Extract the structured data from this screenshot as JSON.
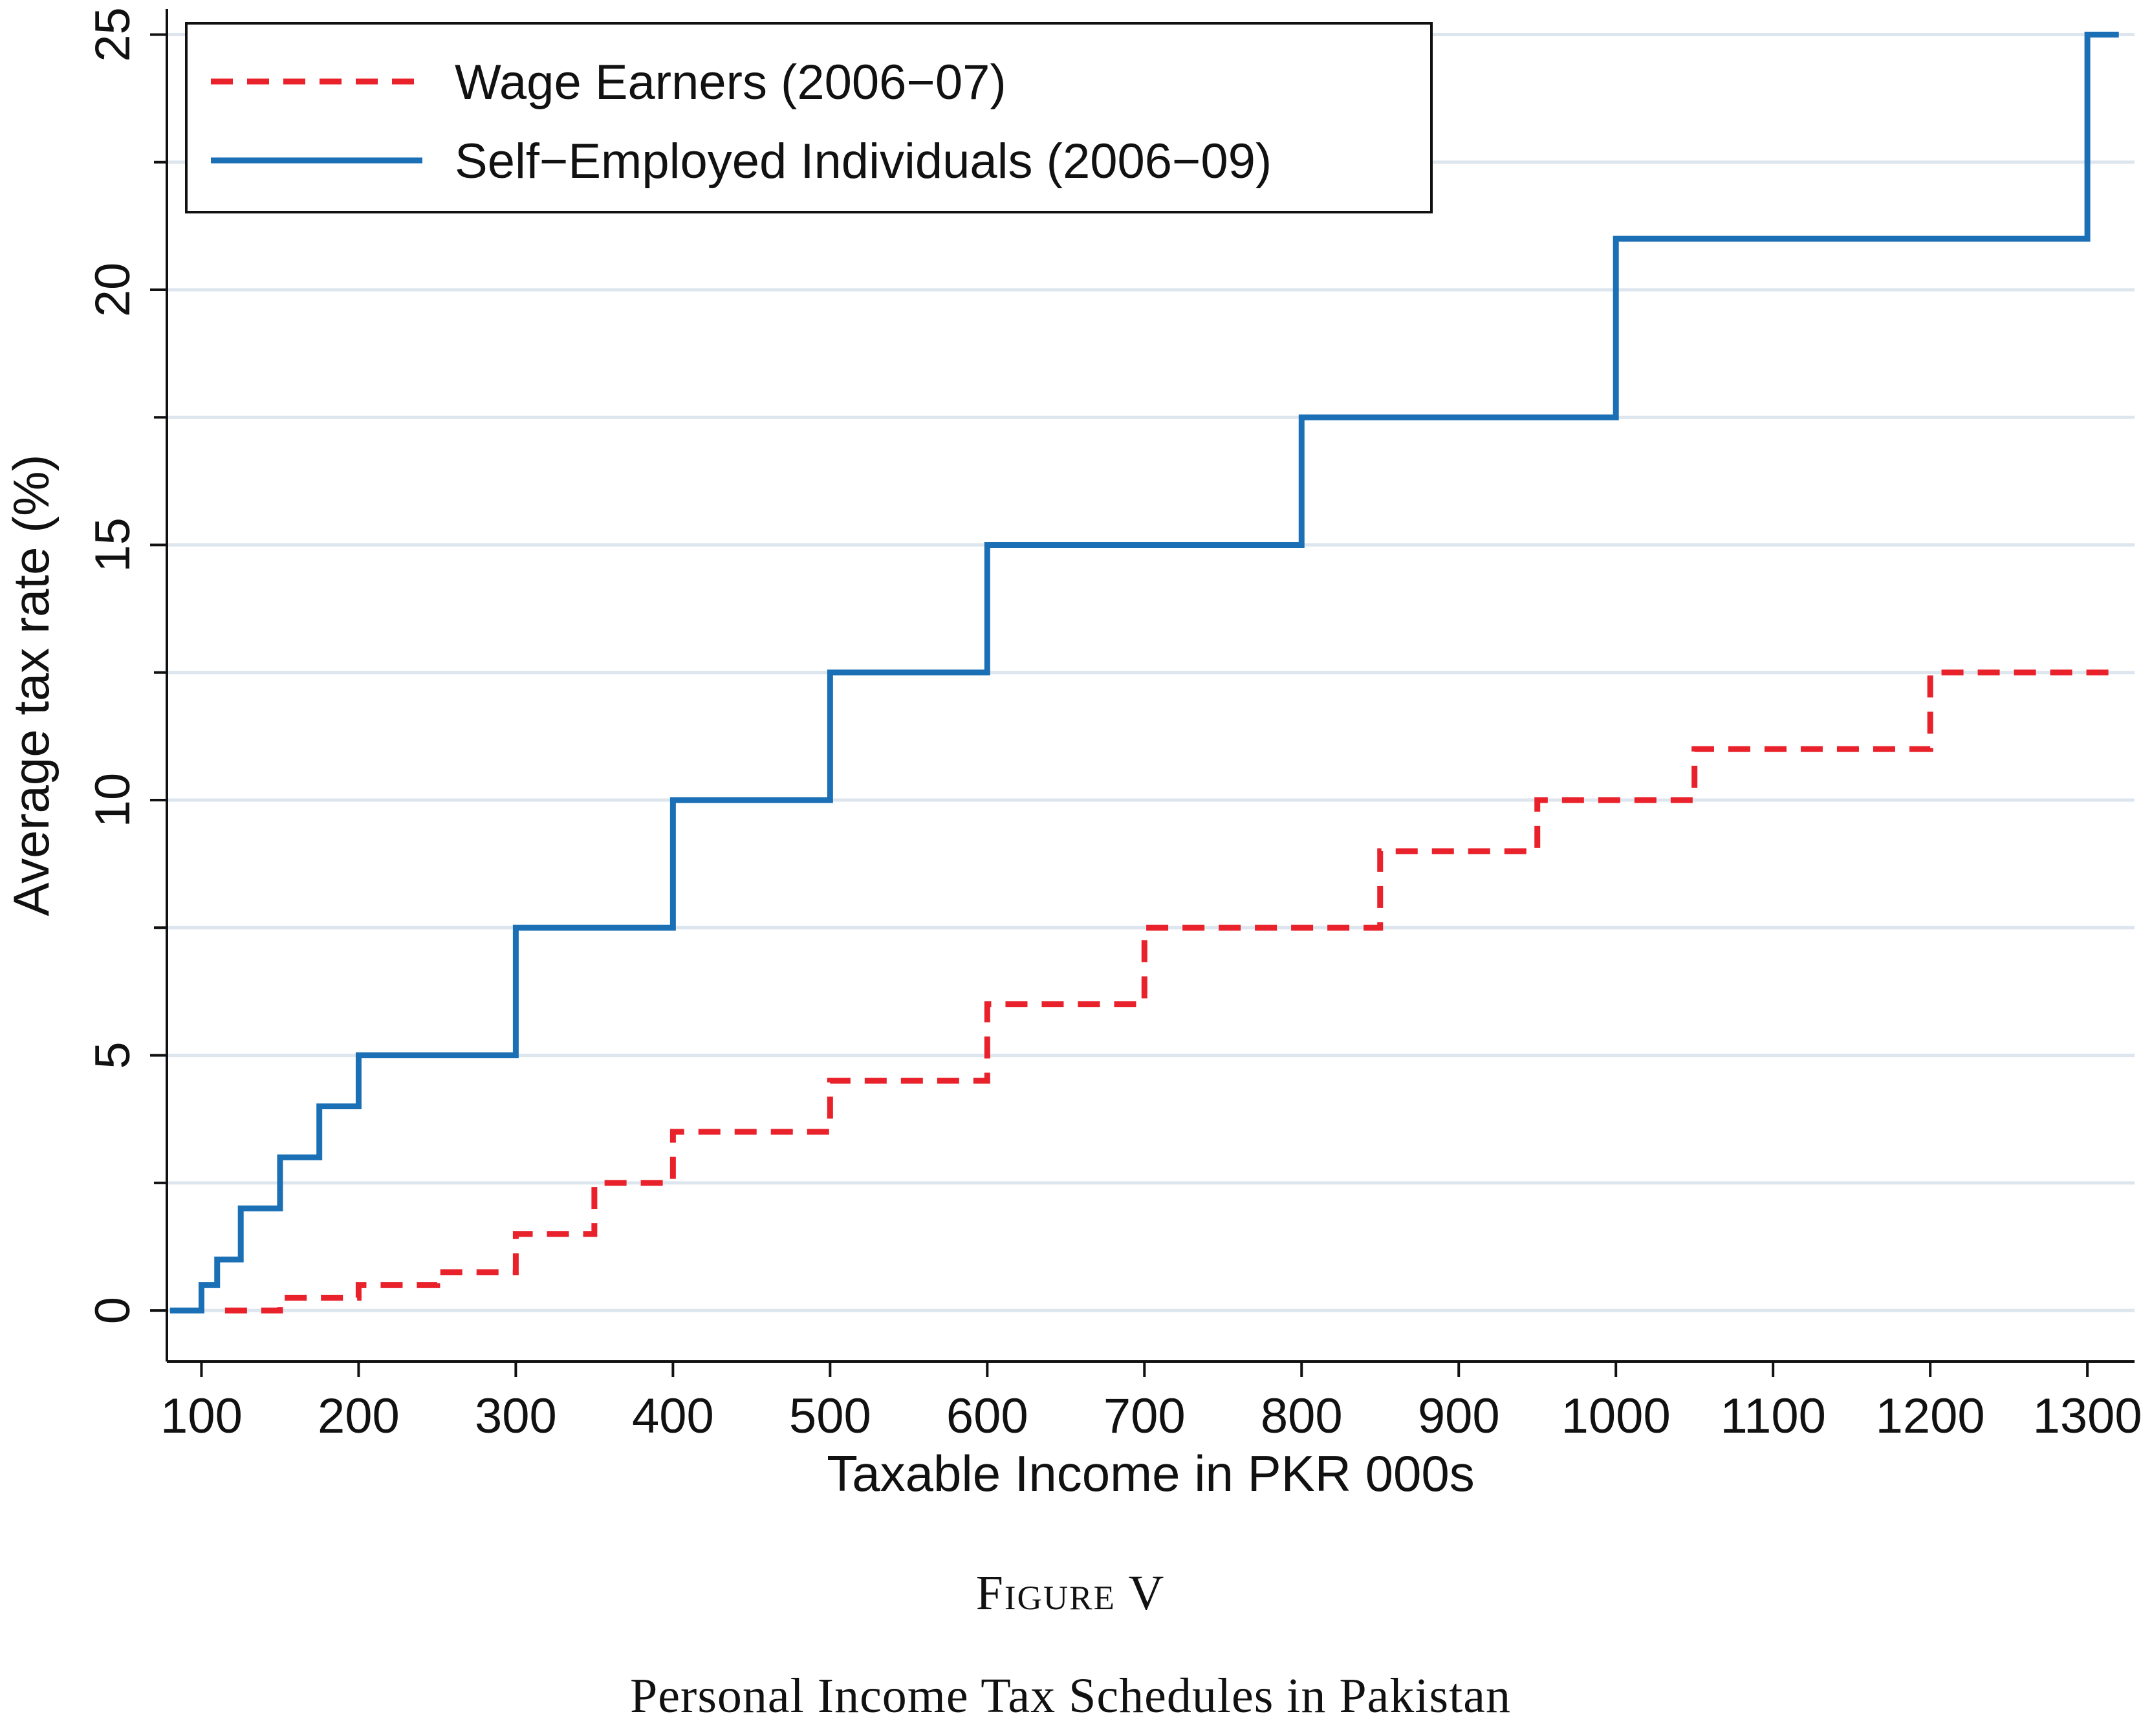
{
  "chart_data": {
    "type": "line",
    "step": true,
    "xlabel": "Taxable Income in PKR 000s",
    "ylabel": "Average tax rate (%)",
    "xlim": [
      78,
      1330
    ],
    "ylim": [
      -1,
      25.5
    ],
    "xticks": [
      100,
      200,
      300,
      400,
      500,
      600,
      700,
      800,
      900,
      1000,
      1100,
      1200,
      1300
    ],
    "yticks": [
      0,
      5,
      10,
      15,
      20,
      25
    ],
    "grid": true,
    "legend_position": "top-left",
    "series": [
      {
        "name": "Wage Earners (2006−07)",
        "color": "#e8212b",
        "dash": "dashed",
        "steps": [
          [
            115,
            0
          ],
          [
            150,
            0.25
          ],
          [
            200,
            0.5
          ],
          [
            250,
            0.75
          ],
          [
            300,
            1.5
          ],
          [
            350,
            2.5
          ],
          [
            400,
            3.5
          ],
          [
            500,
            4.5
          ],
          [
            600,
            6
          ],
          [
            700,
            7.5
          ],
          [
            850,
            9
          ],
          [
            950,
            10
          ],
          [
            1050,
            11
          ],
          [
            1200,
            12.5
          ]
        ],
        "x_end": 1320
      },
      {
        "name": "Self−Employed Individuals (2006−09)",
        "color": "#1a6fb5",
        "dash": "solid",
        "steps": [
          [
            80,
            0
          ],
          [
            100,
            0.5
          ],
          [
            110,
            1
          ],
          [
            125,
            2
          ],
          [
            150,
            3
          ],
          [
            175,
            4
          ],
          [
            200,
            5
          ],
          [
            300,
            7.5
          ],
          [
            400,
            10
          ],
          [
            500,
            12.5
          ],
          [
            600,
            15
          ],
          [
            800,
            17.5
          ],
          [
            1000,
            21
          ],
          [
            1300,
            25
          ]
        ],
        "x_end": 1320
      }
    ]
  },
  "caption": {
    "figure_label": "Figure V",
    "title": "Personal Income Tax Schedules in Pakistan"
  }
}
